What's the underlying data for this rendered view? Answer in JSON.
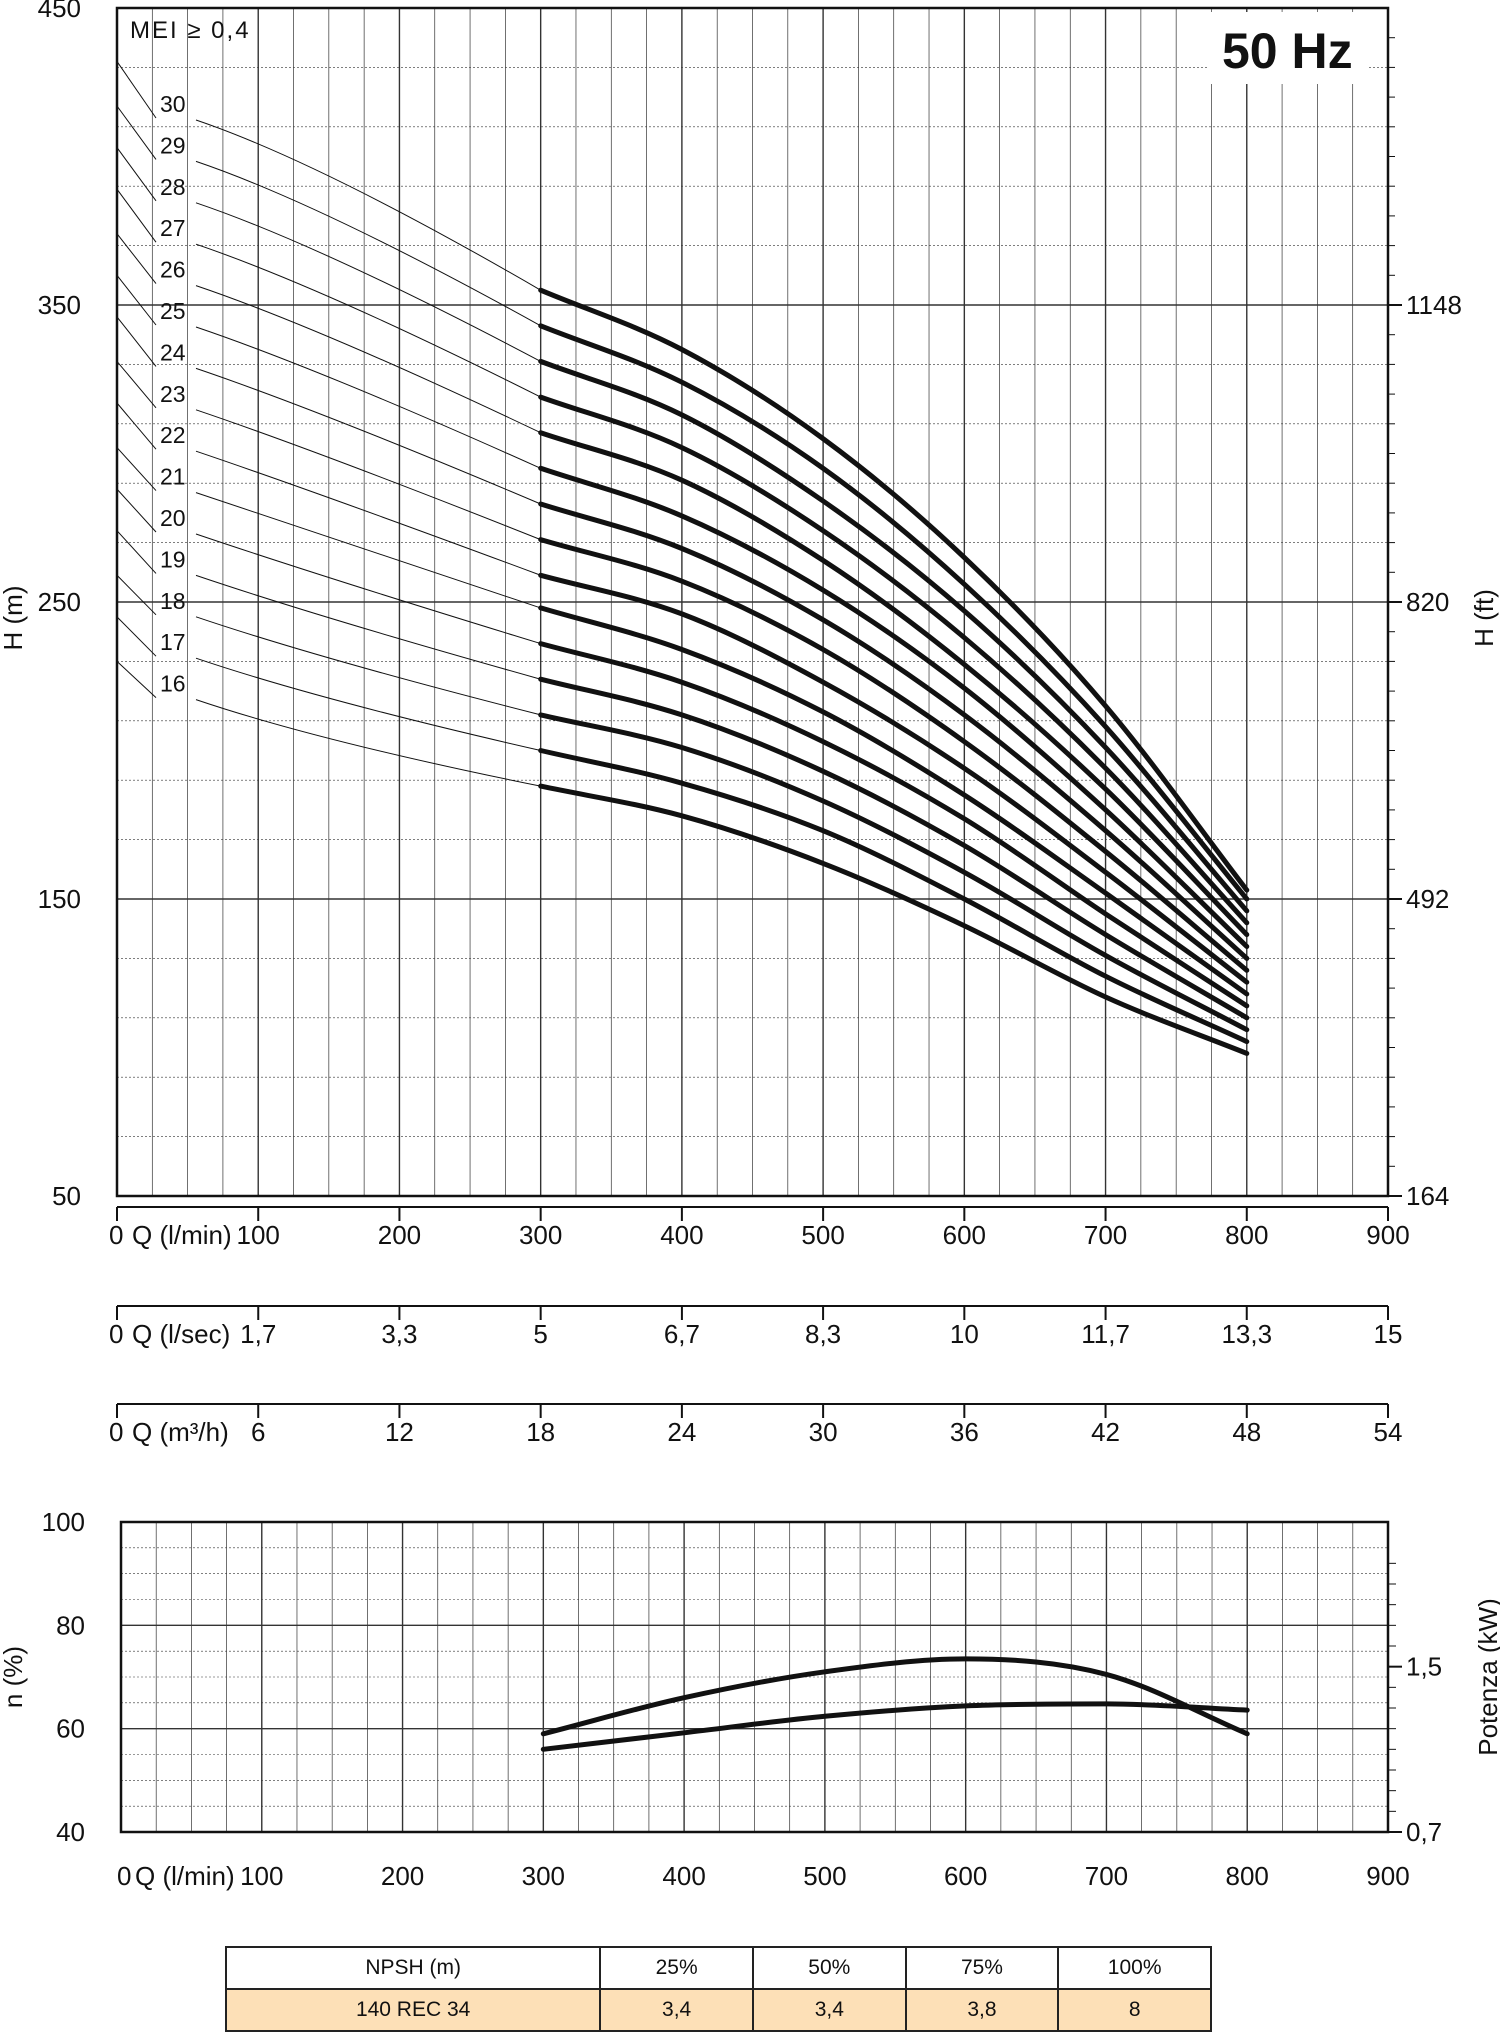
{
  "badge": "50 Hz",
  "mei_label": "MEI ≥ 0,4",
  "head_chart": {
    "type": "line",
    "ylabel_left": "H (m)",
    "ylabel_right": "H (ft)",
    "ylim": [
      50,
      450
    ],
    "xlim": [
      0,
      900
    ],
    "y_ticks": [
      {
        "value": 50,
        "label": "50"
      },
      {
        "value": 150,
        "label": "150"
      },
      {
        "value": 250,
        "label": "250"
      },
      {
        "value": 350,
        "label": "350"
      },
      {
        "value": 450,
        "label": "450"
      }
    ],
    "y_ticks_right": [
      {
        "value": 50,
        "label": "164"
      },
      {
        "value": 150,
        "label": "492"
      },
      {
        "value": 250,
        "label": "820"
      },
      {
        "value": 350,
        "label": "1148"
      }
    ],
    "grid": true
  },
  "flow_scales": [
    {
      "name": "Q (l/min)",
      "min": 0,
      "max": 900,
      "ticks": [
        {
          "value": 0,
          "label": "0"
        },
        {
          "value": 100,
          "label": "100"
        },
        {
          "value": 200,
          "label": "200"
        },
        {
          "value": 300,
          "label": "300"
        },
        {
          "value": 400,
          "label": "400"
        },
        {
          "value": 500,
          "label": "500"
        },
        {
          "value": 600,
          "label": "600"
        },
        {
          "value": 700,
          "label": "700"
        },
        {
          "value": 800,
          "label": "800"
        },
        {
          "value": 900,
          "label": "900"
        }
      ]
    },
    {
      "name": "Q (l/sec)",
      "min": 0,
      "max": 15,
      "ticks": [
        {
          "value": 0,
          "label": "0"
        },
        {
          "value": 1.667,
          "label": "1,7"
        },
        {
          "value": 3.333,
          "label": "3,3"
        },
        {
          "value": 5,
          "label": "5"
        },
        {
          "value": 6.667,
          "label": "6,7"
        },
        {
          "value": 8.333,
          "label": "8,3"
        },
        {
          "value": 10,
          "label": "10"
        },
        {
          "value": 11.667,
          "label": "11,7"
        },
        {
          "value": 13.333,
          "label": "13,3"
        },
        {
          "value": 15,
          "label": "15"
        }
      ]
    },
    {
      "name": "Q (m³/h)",
      "min": 0,
      "max": 54,
      "ticks": [
        {
          "value": 0,
          "label": "0"
        },
        {
          "value": 6,
          "label": "6"
        },
        {
          "value": 12,
          "label": "12"
        },
        {
          "value": 18,
          "label": "18"
        },
        {
          "value": 24,
          "label": "24"
        },
        {
          "value": 30,
          "label": "30"
        },
        {
          "value": 36,
          "label": "36"
        },
        {
          "value": 42,
          "label": "42"
        },
        {
          "value": 48,
          "label": "48"
        },
        {
          "value": 54,
          "label": "54"
        }
      ]
    }
  ],
  "chart_data": {
    "type": "line",
    "x_unit": "Q (l/min)",
    "head_curves": [
      {
        "name": "30",
        "shutoff": 432,
        "points": [
          [
            300,
            355
          ],
          [
            400,
            335
          ],
          [
            500,
            305
          ],
          [
            600,
            265
          ],
          [
            700,
            215
          ],
          [
            800,
            153
          ]
        ]
      },
      {
        "name": "29",
        "shutoff": 417,
        "points": [
          [
            300,
            343
          ],
          [
            400,
            324
          ],
          [
            500,
            295
          ],
          [
            600,
            256
          ],
          [
            700,
            208
          ],
          [
            800,
            150
          ]
        ]
      },
      {
        "name": "28",
        "shutoff": 403,
        "points": [
          [
            300,
            331
          ],
          [
            400,
            313
          ],
          [
            500,
            284
          ],
          [
            600,
            247
          ],
          [
            700,
            201
          ],
          [
            800,
            146
          ]
        ]
      },
      {
        "name": "27",
        "shutoff": 389,
        "points": [
          [
            300,
            319
          ],
          [
            400,
            302
          ],
          [
            500,
            274
          ],
          [
            600,
            238
          ],
          [
            700,
            194
          ],
          [
            800,
            142
          ]
        ]
      },
      {
        "name": "26",
        "shutoff": 374,
        "points": [
          [
            300,
            307
          ],
          [
            400,
            291
          ],
          [
            500,
            264
          ],
          [
            600,
            229
          ],
          [
            700,
            187
          ],
          [
            800,
            138
          ]
        ]
      },
      {
        "name": "25",
        "shutoff": 360,
        "points": [
          [
            300,
            295
          ],
          [
            400,
            279
          ],
          [
            500,
            254
          ],
          [
            600,
            221
          ],
          [
            700,
            180
          ],
          [
            800,
            134
          ]
        ]
      },
      {
        "name": "24",
        "shutoff": 346,
        "points": [
          [
            300,
            283
          ],
          [
            400,
            268
          ],
          [
            500,
            244
          ],
          [
            600,
            212
          ],
          [
            700,
            173
          ],
          [
            800,
            130
          ]
        ]
      },
      {
        "name": "23",
        "shutoff": 331,
        "points": [
          [
            300,
            271
          ],
          [
            400,
            257
          ],
          [
            500,
            234
          ],
          [
            600,
            203
          ],
          [
            700,
            166
          ],
          [
            800,
            126
          ]
        ]
      },
      {
        "name": "22",
        "shutoff": 317,
        "points": [
          [
            300,
            259
          ],
          [
            400,
            246
          ],
          [
            500,
            223
          ],
          [
            600,
            194
          ],
          [
            700,
            159
          ],
          [
            800,
            122
          ]
        ]
      },
      {
        "name": "21",
        "shutoff": 302,
        "points": [
          [
            300,
            248
          ],
          [
            400,
            234
          ],
          [
            500,
            213
          ],
          [
            600,
            185
          ],
          [
            700,
            152
          ],
          [
            800,
            118
          ]
        ]
      },
      {
        "name": "20",
        "shutoff": 288,
        "points": [
          [
            300,
            236
          ],
          [
            400,
            223
          ],
          [
            500,
            203
          ],
          [
            600,
            177
          ],
          [
            700,
            145
          ],
          [
            800,
            114
          ]
        ]
      },
      {
        "name": "19",
        "shutoff": 274,
        "points": [
          [
            300,
            224
          ],
          [
            400,
            212
          ],
          [
            500,
            193
          ],
          [
            600,
            168
          ],
          [
            700,
            138
          ],
          [
            800,
            110
          ]
        ]
      },
      {
        "name": "18",
        "shutoff": 259,
        "points": [
          [
            300,
            212
          ],
          [
            400,
            201
          ],
          [
            500,
            183
          ],
          [
            600,
            159
          ],
          [
            700,
            131
          ],
          [
            800,
            106
          ]
        ]
      },
      {
        "name": "17",
        "shutoff": 245,
        "points": [
          [
            300,
            200
          ],
          [
            400,
            189
          ],
          [
            500,
            173
          ],
          [
            600,
            150
          ],
          [
            700,
            124
          ],
          [
            800,
            102
          ]
        ]
      },
      {
        "name": "16",
        "shutoff": 230,
        "points": [
          [
            300,
            188
          ],
          [
            400,
            178
          ],
          [
            500,
            162
          ],
          [
            600,
            141
          ],
          [
            700,
            117
          ],
          [
            800,
            98
          ]
        ]
      }
    ],
    "efficiency_curve": {
      "points": [
        [
          300,
          59
        ],
        [
          400,
          66
        ],
        [
          500,
          71
        ],
        [
          600,
          73.5
        ],
        [
          700,
          70.5
        ],
        [
          800,
          59
        ]
      ]
    },
    "power_curve": {
      "points": [
        [
          300,
          1.1
        ],
        [
          400,
          1.18
        ],
        [
          500,
          1.26
        ],
        [
          600,
          1.31
        ],
        [
          700,
          1.32
        ],
        [
          800,
          1.29
        ]
      ]
    }
  },
  "efficiency_chart": {
    "ylabel_left": "n (%)",
    "ylabel_right": "Potenza (kW)",
    "ylim": [
      40,
      100
    ],
    "xlim": [
      0,
      900
    ],
    "power_lim": [
      0.7,
      2.2
    ],
    "y_ticks": [
      {
        "value": 40,
        "label": "40"
      },
      {
        "value": 60,
        "label": "60"
      },
      {
        "value": 80,
        "label": "80"
      },
      {
        "value": 100,
        "label": "100"
      }
    ],
    "y_ticks_right": [
      {
        "value": 0.7,
        "label": "0,7"
      },
      {
        "value": 1.5,
        "label": "1,5"
      }
    ],
    "x_name": "Q (l/min)",
    "x_ticks": [
      {
        "value": 0,
        "label": "0"
      },
      {
        "value": 100,
        "label": "100"
      },
      {
        "value": 200,
        "label": "200"
      },
      {
        "value": 300,
        "label": "300"
      },
      {
        "value": 400,
        "label": "400"
      },
      {
        "value": 500,
        "label": "500"
      },
      {
        "value": 600,
        "label": "600"
      },
      {
        "value": 700,
        "label": "700"
      },
      {
        "value": 800,
        "label": "800"
      },
      {
        "value": 900,
        "label": "900"
      }
    ],
    "grid": true
  },
  "npsh_table": {
    "header": [
      "NPSH (m)",
      "25%",
      "50%",
      "75%",
      "100%"
    ],
    "row": [
      "140 REC 34",
      "3,4",
      "3,4",
      "3,8",
      "8"
    ]
  },
  "colors": {
    "curve": "#111111",
    "grid": "#333333",
    "table_row": "#fde0b7"
  }
}
